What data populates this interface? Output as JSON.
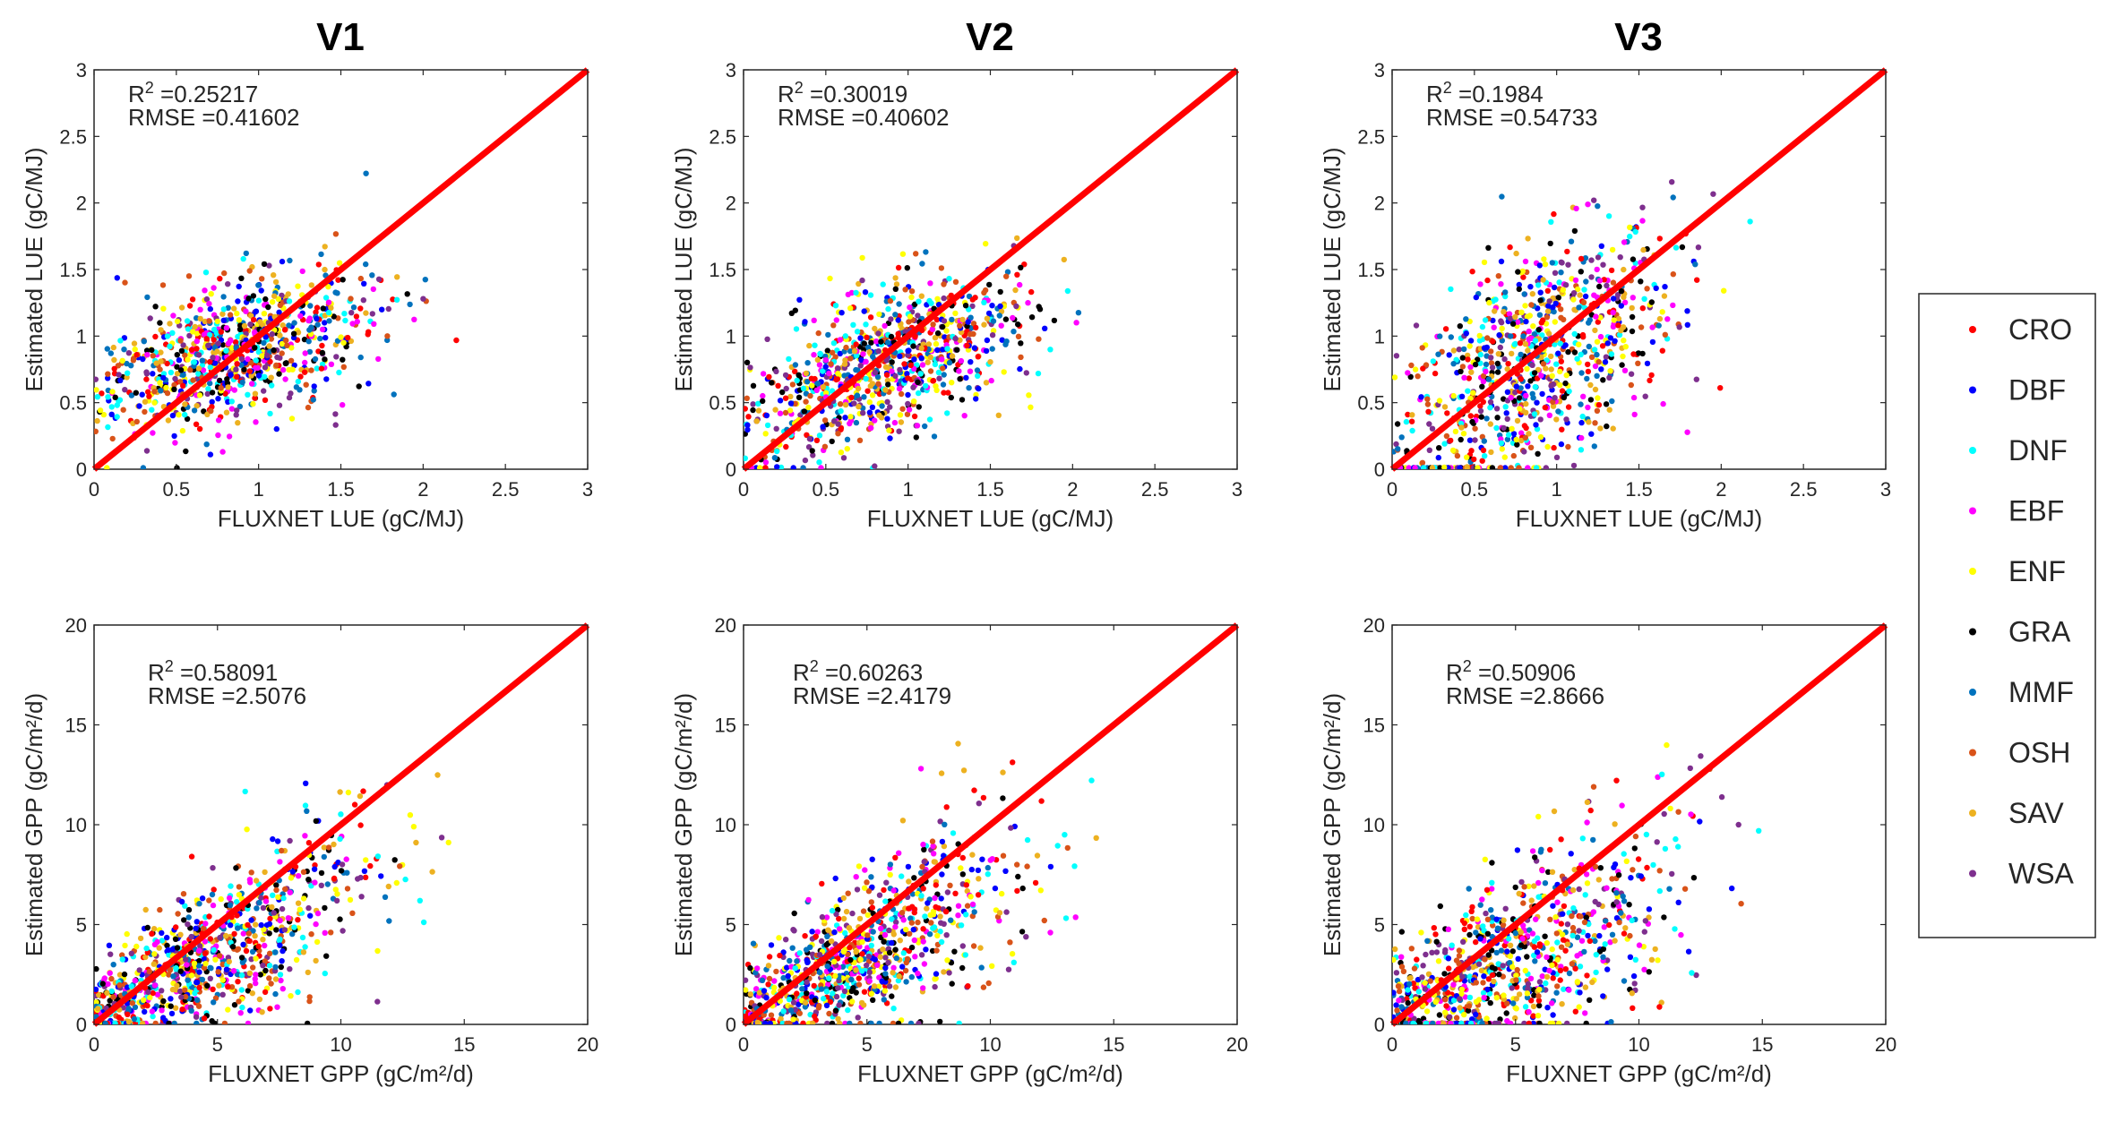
{
  "column_titles": [
    "V1",
    "V2",
    "V3"
  ],
  "legend": {
    "entries": [
      {
        "label": "CRO",
        "color": "#ff0000"
      },
      {
        "label": "DBF",
        "color": "#0000ff"
      },
      {
        "label": "DNF",
        "color": "#00ffff"
      },
      {
        "label": "EBF",
        "color": "#ff00ff"
      },
      {
        "label": "ENF",
        "color": "#ffff00"
      },
      {
        "label": "GRA",
        "color": "#000000"
      },
      {
        "label": "MMF",
        "color": "#0072bd"
      },
      {
        "label": "OSH",
        "color": "#d95319"
      },
      {
        "label": "SAV",
        "color": "#edb120"
      },
      {
        "label": "WSA",
        "color": "#7e2f8e"
      }
    ]
  },
  "one_to_one_line_color": "#ff0000",
  "chart_data": [
    {
      "id": "lue-v1",
      "type": "scatter",
      "title": "V1",
      "xlabel": "FLUXNET LUE (gC/MJ)",
      "ylabel": "Estimated LUE (gC/MJ)",
      "xlim": [
        0,
        3
      ],
      "ylim": [
        0,
        3
      ],
      "xticks": [
        "0",
        "0.5",
        "1",
        "1.5",
        "2",
        "2.5",
        "3"
      ],
      "yticks": [
        "0",
        "0.5",
        "1",
        "1.5",
        "2",
        "2.5",
        "3"
      ],
      "r2": "0.25217",
      "rmse": "0.41602",
      "one_to_one": [
        [
          0,
          0
        ],
        [
          3,
          3
        ]
      ]
    },
    {
      "id": "lue-v2",
      "type": "scatter",
      "title": "V2",
      "xlabel": "FLUXNET LUE (gC/MJ)",
      "ylabel": "Estimated LUE (gC/MJ)",
      "xlim": [
        0,
        3
      ],
      "ylim": [
        0,
        3
      ],
      "xticks": [
        "0",
        "0.5",
        "1",
        "1.5",
        "2",
        "2.5",
        "3"
      ],
      "yticks": [
        "0",
        "0.5",
        "1",
        "1.5",
        "2",
        "2.5",
        "3"
      ],
      "r2": "0.30019",
      "rmse": "0.40602",
      "one_to_one": [
        [
          0,
          0
        ],
        [
          3,
          3
        ]
      ]
    },
    {
      "id": "lue-v3",
      "type": "scatter",
      "title": "V3",
      "xlabel": "FLUXNET LUE (gC/MJ)",
      "ylabel": "Estimated LUE (gC/MJ)",
      "xlim": [
        0,
        3
      ],
      "ylim": [
        0,
        3
      ],
      "xticks": [
        "0",
        "0.5",
        "1",
        "1.5",
        "2",
        "2.5",
        "3"
      ],
      "yticks": [
        "0",
        "0.5",
        "1",
        "1.5",
        "2",
        "2.5",
        "3"
      ],
      "r2": "0.1984",
      "rmse": "0.54733",
      "one_to_one": [
        [
          0,
          0
        ],
        [
          3,
          3
        ]
      ]
    },
    {
      "id": "gpp-v1",
      "type": "scatter",
      "title": "V1",
      "xlabel": "FLUXNET GPP (gC/m²/d)",
      "ylabel": "Estimated GPP (gC/m²/d)",
      "xlim": [
        0,
        20
      ],
      "ylim": [
        0,
        20
      ],
      "xticks": [
        "0",
        "5",
        "10",
        "15",
        "20"
      ],
      "yticks": [
        "0",
        "5",
        "10",
        "15",
        "20"
      ],
      "r2": "0.58091",
      "rmse": "2.5076",
      "one_to_one": [
        [
          0,
          0
        ],
        [
          20,
          20
        ]
      ]
    },
    {
      "id": "gpp-v2",
      "type": "scatter",
      "title": "V2",
      "xlabel": "FLUXNET GPP (gC/m²/d)",
      "ylabel": "Estimated GPP (gC/m²/d)",
      "xlim": [
        0,
        20
      ],
      "ylim": [
        0,
        20
      ],
      "xticks": [
        "0",
        "5",
        "10",
        "15",
        "20"
      ],
      "yticks": [
        "0",
        "5",
        "10",
        "15",
        "20"
      ],
      "r2": "0.60263",
      "rmse": "2.4179",
      "one_to_one": [
        [
          0,
          0
        ],
        [
          20,
          20
        ]
      ]
    },
    {
      "id": "gpp-v3",
      "type": "scatter",
      "title": "V3",
      "xlabel": "FLUXNET GPP (gC/m²/d)",
      "ylabel": "Estimated GPP (gC/m²/d)",
      "xlim": [
        0,
        20
      ],
      "ylim": [
        0,
        20
      ],
      "xticks": [
        "0",
        "5",
        "10",
        "15",
        "20"
      ],
      "yticks": [
        "0",
        "5",
        "10",
        "15",
        "20"
      ],
      "r2": "0.50906",
      "rmse": "2.8666",
      "one_to_one": [
        [
          0,
          0
        ],
        [
          20,
          20
        ]
      ]
    }
  ]
}
